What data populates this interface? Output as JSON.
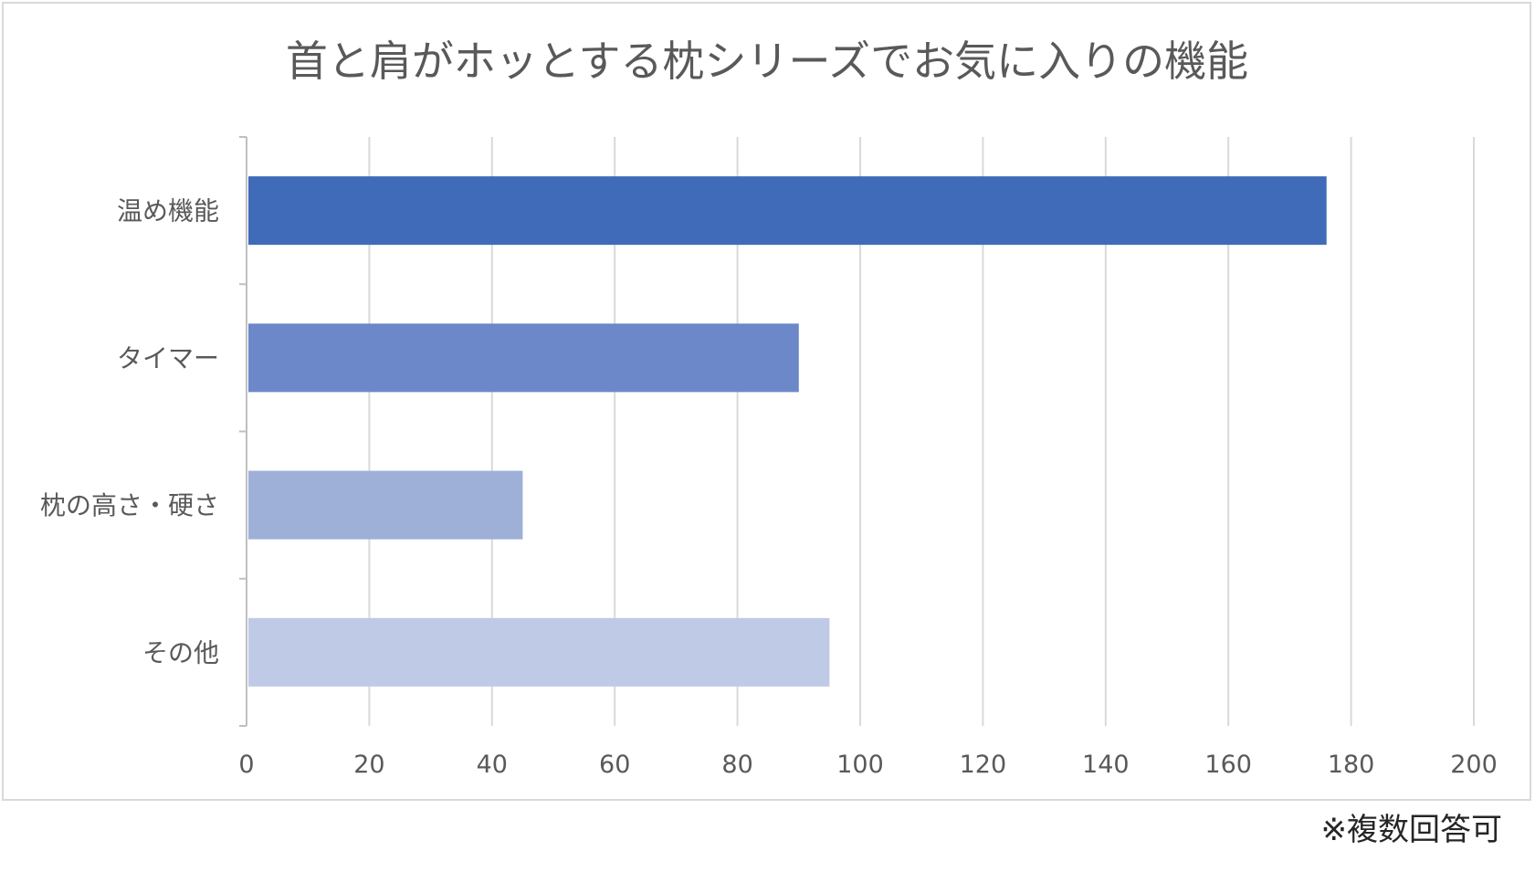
{
  "chart_data": {
    "type": "bar",
    "orientation": "horizontal",
    "title": "首と肩がホッとする枕シリーズでお気に入りの機能",
    "categories": [
      "温め機能",
      "タイマー",
      "枕の高さ・硬さ",
      "その他"
    ],
    "values": [
      176,
      90,
      45,
      95
    ],
    "colors": [
      "#3f6bb8",
      "#6d88c9",
      "#9eafd8",
      "#bfcbe6"
    ],
    "xlim": [
      0,
      200
    ],
    "xticks": [
      0,
      20,
      40,
      60,
      80,
      100,
      120,
      140,
      160,
      180,
      200
    ],
    "grid": true,
    "legend": "none",
    "note": "※複数回答可"
  }
}
